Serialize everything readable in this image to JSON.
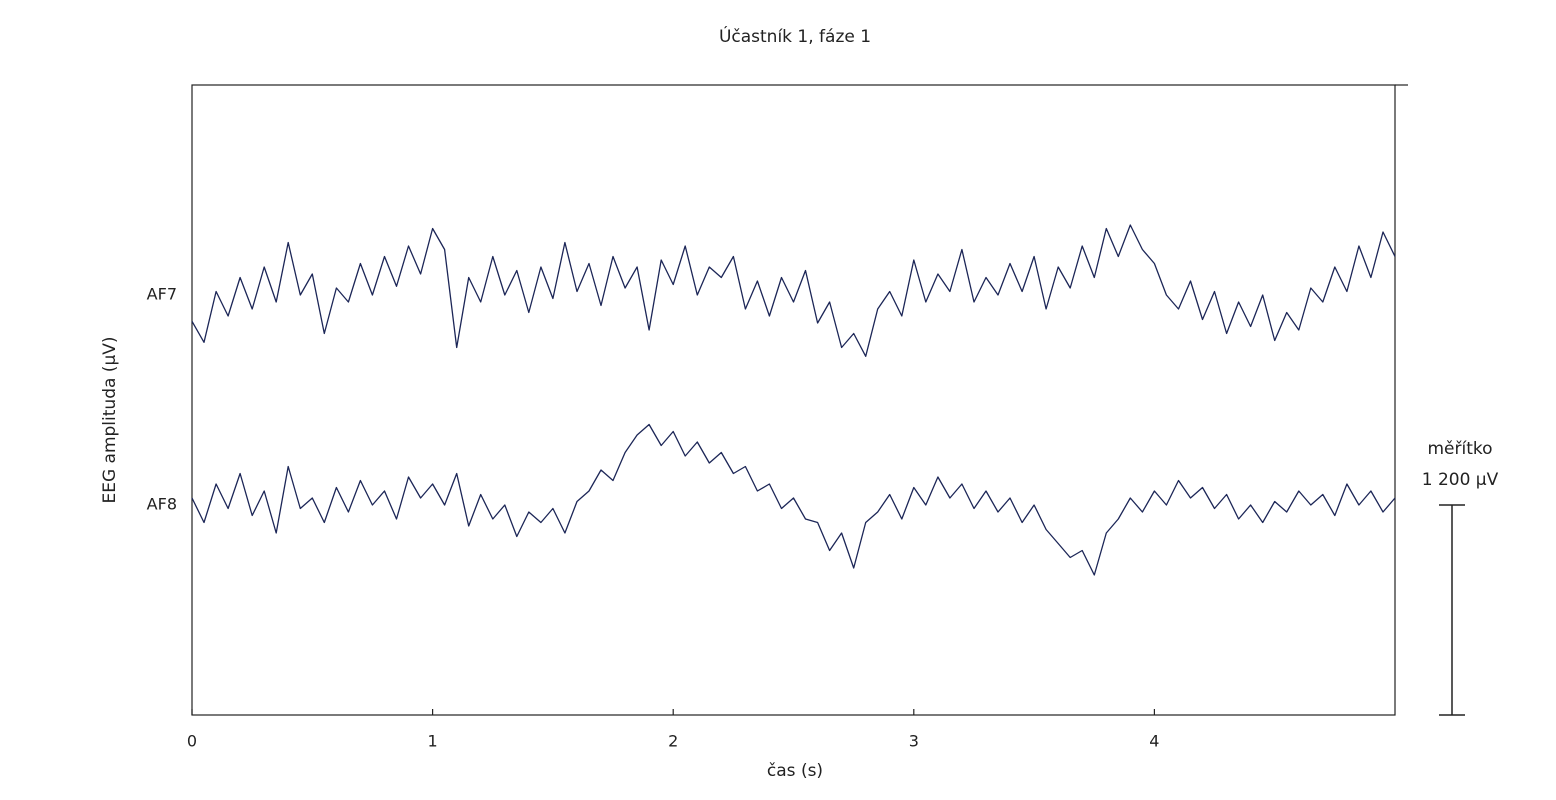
{
  "chart_data": {
    "type": "line",
    "title": "Účastník 1, fáze 1",
    "x_label": "čas (s)",
    "y_label": "EEG amplituda (µV)",
    "x": [
      0,
      0.05,
      0.1,
      0.15,
      0.2,
      0.25,
      0.3,
      0.35,
      0.4,
      0.45,
      0.5,
      0.55,
      0.6,
      0.65,
      0.7,
      0.75,
      0.8,
      0.85,
      0.9,
      0.95,
      1,
      1.05,
      1.1,
      1.15,
      1.2,
      1.25,
      1.3,
      1.35,
      1.4,
      1.45,
      1.5,
      1.55,
      1.6,
      1.65,
      1.7,
      1.75,
      1.8,
      1.85,
      1.9,
      1.95,
      2,
      2.05,
      2.1,
      2.15,
      2.2,
      2.25,
      2.3,
      2.35,
      2.4,
      2.45,
      2.5,
      2.55,
      2.6,
      2.65,
      2.7,
      2.75,
      2.8,
      2.85,
      2.9,
      2.95,
      3,
      3.05,
      3.1,
      3.15,
      3.2,
      3.25,
      3.3,
      3.35,
      3.4,
      3.45,
      3.5,
      3.55,
      3.6,
      3.65,
      3.7,
      3.75,
      3.8,
      3.85,
      3.9,
      3.95,
      4,
      4.05,
      4.1,
      4.15,
      4.2,
      4.25,
      4.3,
      4.35,
      4.4,
      4.45,
      4.5,
      4.55,
      4.6,
      4.65,
      4.7,
      4.75,
      4.8,
      4.85,
      4.9,
      4.95,
      5
    ],
    "series": [
      {
        "name": "AF7",
        "color": "#1c2657",
        "values": [
          450,
          330,
          620,
          480,
          700,
          520,
          760,
          560,
          900,
          600,
          720,
          380,
          640,
          560,
          780,
          600,
          820,
          650,
          880,
          720,
          980,
          860,
          300,
          700,
          560,
          820,
          600,
          740,
          500,
          760,
          580,
          900,
          620,
          780,
          540,
          820,
          640,
          760,
          400,
          800,
          660,
          880,
          600,
          760,
          700,
          820,
          520,
          680,
          480,
          700,
          560,
          740,
          440,
          560,
          300,
          380,
          250,
          520,
          620,
          480,
          800,
          560,
          720,
          620,
          860,
          560,
          700,
          600,
          780,
          620,
          820,
          520,
          760,
          640,
          880,
          700,
          980,
          820,
          1000,
          860,
          780,
          600,
          520,
          680,
          460,
          620,
          380,
          560,
          420,
          600,
          340,
          500,
          400,
          640,
          560,
          760,
          620,
          880,
          700,
          960,
          820
        ]
      },
      {
        "name": "AF8",
        "color": "#1c2657",
        "values": [
          -560,
          -700,
          -480,
          -620,
          -420,
          -660,
          -520,
          -760,
          -380,
          -620,
          -560,
          -700,
          -500,
          -640,
          -460,
          -600,
          -520,
          -680,
          -440,
          -560,
          -480,
          -600,
          -420,
          -720,
          -540,
          -680,
          -600,
          -780,
          -640,
          -700,
          -620,
          -760,
          -580,
          -520,
          -400,
          -460,
          -300,
          -200,
          -140,
          -260,
          -180,
          -320,
          -240,
          -360,
          -300,
          -420,
          -380,
          -520,
          -480,
          -620,
          -560,
          -680,
          -700,
          -860,
          -760,
          -960,
          -700,
          -640,
          -540,
          -680,
          -500,
          -600,
          -440,
          -560,
          -480,
          -620,
          -520,
          -640,
          -560,
          -700,
          -600,
          -740,
          -820,
          -900,
          -860,
          -1000,
          -760,
          -680,
          -560,
          -640,
          -520,
          -600,
          -460,
          -560,
          -500,
          -620,
          -540,
          -680,
          -600,
          -700,
          -580,
          -640,
          -520,
          -600,
          -540,
          -660,
          -480,
          -600,
          -520,
          -640,
          -560
        ]
      }
    ],
    "xlim": [
      0,
      5
    ],
    "xticks": [
      0,
      1,
      2,
      3,
      4
    ],
    "ylim": [
      -1800,
      1800
    ],
    "yticks": [
      {
        "value": 600,
        "label": "AF7"
      },
      {
        "value": -600,
        "label": "AF8"
      }
    ],
    "scale_bar": {
      "title": "měřítko",
      "label": "1 200 µV",
      "value": 1200
    }
  }
}
